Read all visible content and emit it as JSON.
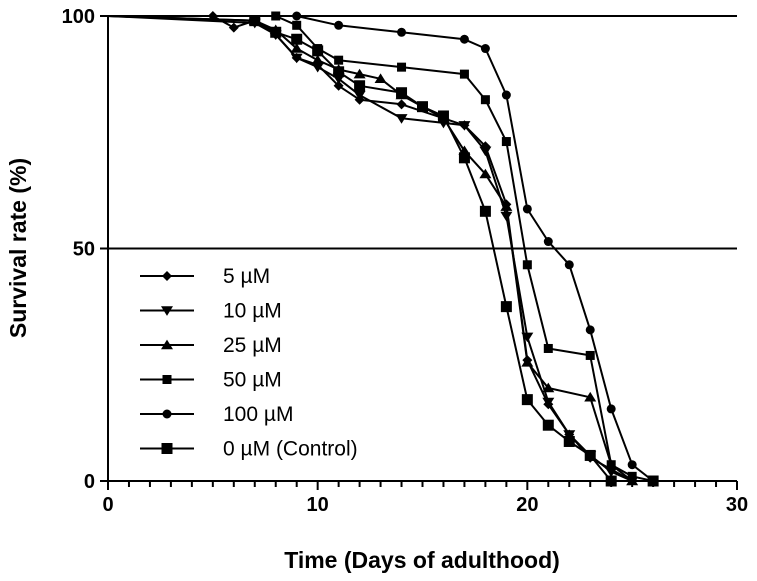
{
  "chart_data": {
    "type": "line",
    "title": "",
    "xlabel": "Time (Days of adulthood)",
    "ylabel": "Survival rate (%)",
    "xlim": [
      0,
      30
    ],
    "ylim": [
      0,
      100
    ],
    "xticks": [
      "0",
      "10",
      "20",
      "30"
    ],
    "yticks": [
      "0",
      "50",
      "100"
    ],
    "xticks_values": [
      0,
      10,
      20,
      30
    ],
    "yticks_values": [
      0,
      50,
      100
    ],
    "minor_x_step": 1,
    "grid": false,
    "reference_lines": [
      50,
      100
    ],
    "legend_position": "bottom-left",
    "line_color": "#000000",
    "series": [
      {
        "name": "5 µM",
        "marker": "diamond",
        "x": [
          0,
          5,
          6,
          7,
          8,
          9,
          10,
          11,
          12,
          14,
          16,
          17,
          18,
          19,
          20,
          21,
          22,
          23,
          24,
          25
        ],
        "y": [
          100,
          100,
          97.5,
          99,
          96,
          91,
          89.5,
          85,
          82,
          81,
          78,
          76.5,
          72,
          59.5,
          26,
          16.5,
          10,
          5,
          2.5,
          0
        ]
      },
      {
        "name": "10 µM",
        "marker": "triangle-down",
        "x": [
          0,
          7,
          8,
          9,
          10,
          11,
          12,
          14,
          16,
          17,
          18,
          19,
          20,
          21,
          22,
          23,
          24,
          25
        ],
        "y": [
          100,
          98.5,
          96,
          91,
          89,
          86.5,
          83,
          78,
          77,
          76.5,
          71,
          57,
          31,
          17,
          10,
          5.5,
          2,
          0
        ]
      },
      {
        "name": "25 µM",
        "marker": "triangle-up",
        "x": [
          0,
          7,
          8,
          9,
          10,
          11,
          12,
          13,
          14,
          16,
          17,
          18,
          19,
          20,
          21,
          23,
          24,
          25
        ],
        "y": [
          100,
          99,
          97,
          93,
          90.5,
          88.5,
          87.5,
          86.5,
          83,
          78,
          71,
          66,
          59,
          25.5,
          20,
          18,
          3.5,
          0
        ]
      },
      {
        "name": "50 µM",
        "marker": "square",
        "x": [
          0,
          8,
          9,
          10,
          11,
          14,
          17,
          18,
          19,
          20,
          21,
          23,
          24,
          25,
          26
        ],
        "y": [
          100,
          100,
          98,
          93,
          90.5,
          89,
          87.5,
          82,
          73,
          46.5,
          28.5,
          27,
          3.5,
          1,
          0
        ]
      },
      {
        "name": "100 µM",
        "marker": "circle",
        "x": [
          0,
          9,
          11,
          14,
          17,
          18,
          19,
          20,
          21,
          22,
          23,
          24,
          25,
          26
        ],
        "y": [
          100,
          100,
          98,
          96.5,
          95,
          93,
          83,
          58.5,
          51.5,
          46.5,
          32.5,
          15.5,
          3.5,
          0
        ]
      },
      {
        "name": "0 µM (Control)",
        "marker": "square-large",
        "x": [
          0,
          7,
          8,
          9,
          10,
          11,
          12,
          14,
          15,
          16,
          17,
          18,
          19,
          20,
          21,
          22,
          23,
          24,
          26
        ],
        "y": [
          100,
          99,
          96.5,
          95,
          92.5,
          88,
          85,
          83.5,
          80.5,
          78.5,
          69.5,
          58,
          37.5,
          17.5,
          12,
          8.5,
          5.5,
          0,
          0
        ]
      }
    ]
  }
}
